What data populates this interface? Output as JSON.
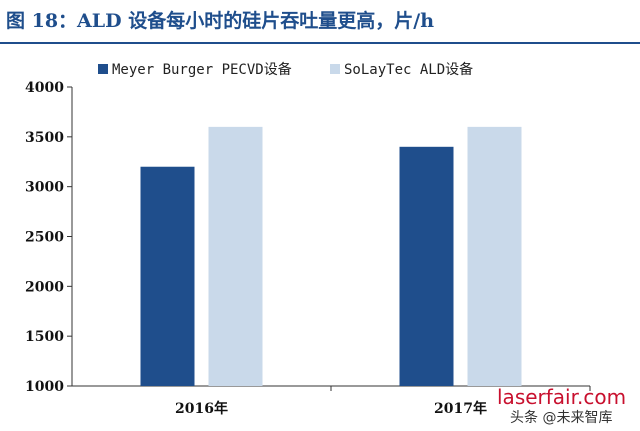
{
  "title": "图 18：ALD 设备每小时的硅片吞吐量更高，片/h",
  "watermark": {
    "site": "laserfair.com",
    "source": "头条 @未来智库"
  },
  "colors": {
    "series1": "#1f4e8c",
    "series2": "#c9d9ea",
    "title": "#1f4e8c",
    "watermark": "#c8102e"
  },
  "chart_data": {
    "type": "bar",
    "title": "图 18：ALD 设备每小时的硅片吞吐量更高，片/h",
    "categories": [
      "2016年",
      "2017年"
    ],
    "series": [
      {
        "name": "Meyer Burger PECVD设备",
        "values": [
          3200,
          3400
        ]
      },
      {
        "name": "SoLayTec ALD设备",
        "values": [
          3600,
          3600
        ]
      }
    ],
    "xlabel": "",
    "ylabel": "",
    "ylim": [
      1000,
      4000
    ],
    "yticks": [
      1000,
      1500,
      2000,
      2500,
      3000,
      3500,
      4000
    ],
    "grid": false,
    "legend": "top"
  }
}
